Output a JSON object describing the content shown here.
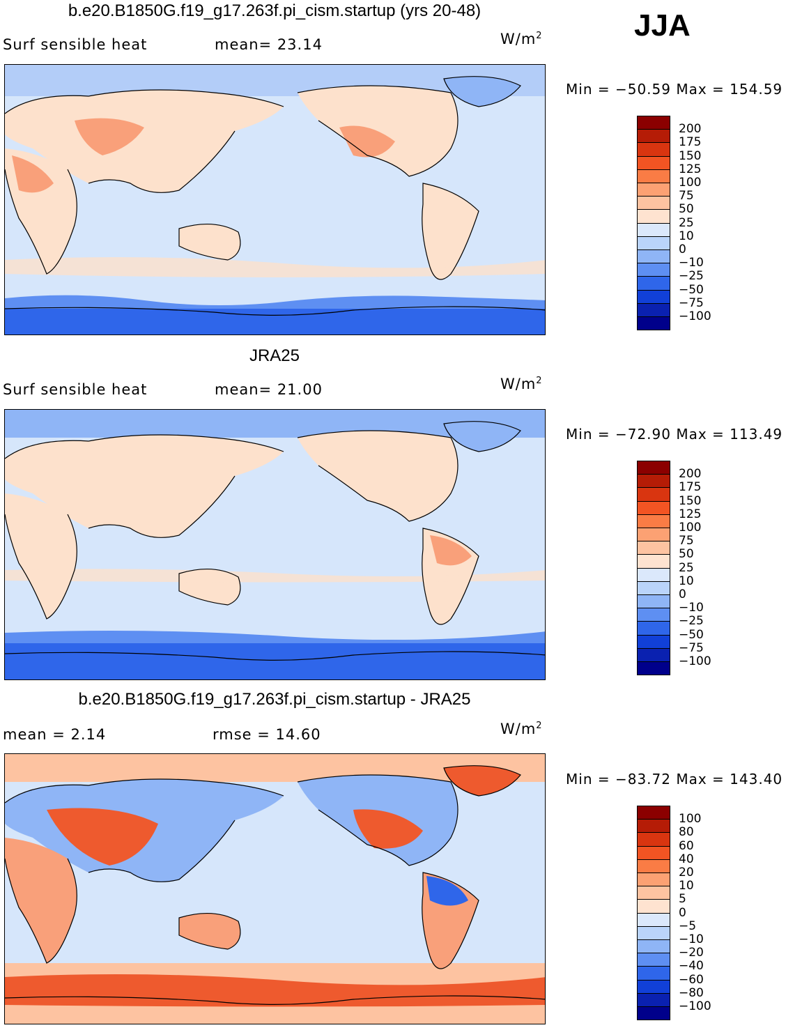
{
  "season": "JJA",
  "panels": [
    {
      "title": "b.e20.B1850G.f19_g17.263f.pi_cism.startup (yrs 20-48)",
      "left_label": "Surf  sensible  heat",
      "mid_label": "mean=   23.14",
      "unit": "W/m",
      "unit_sup": "2",
      "min_label": "Min  =  −50.59",
      "max_label": "Max  =  154.59",
      "levels": [
        "200",
        "175",
        "150",
        "125",
        "100",
        "75",
        "50",
        "25",
        "10",
        "0",
        "−10",
        "−25",
        "−50",
        "−75",
        "−100"
      ],
      "colors": [
        "#8b0000",
        "#b51c06",
        "#d93510",
        "#f25423",
        "#fa7c45",
        "#fca173",
        "#fdc3a1",
        "#fee3d0",
        "#dbe8fb",
        "#bad4fa",
        "#8fb5f6",
        "#5e8ff2",
        "#2f66ea",
        "#1140d8",
        "#0a21b0",
        "#00008b"
      ]
    },
    {
      "title": "JRA25",
      "left_label": "Surf  sensible  heat",
      "mid_label": "mean=   21.00",
      "unit": "W/m",
      "unit_sup": "2",
      "min_label": "Min  =  −72.90",
      "max_label": "Max  =  113.49",
      "levels": [
        "200",
        "175",
        "150",
        "125",
        "100",
        "75",
        "50",
        "25",
        "10",
        "0",
        "−10",
        "−25",
        "−50",
        "−75",
        "−100"
      ],
      "colors": [
        "#8b0000",
        "#b51c06",
        "#d93510",
        "#f25423",
        "#fa7c45",
        "#fca173",
        "#fdc3a1",
        "#fee3d0",
        "#dbe8fb",
        "#bad4fa",
        "#8fb5f6",
        "#5e8ff2",
        "#2f66ea",
        "#1140d8",
        "#0a21b0",
        "#00008b"
      ]
    },
    {
      "title": "b.e20.B1850G.f19_g17.263f.pi_cism.startup - JRA25",
      "left_label": "mean  =     2.14",
      "mid_label": "rmse  =    14.60",
      "unit": "W/m",
      "unit_sup": "2",
      "min_label": "Min  =  −83.72",
      "max_label": "Max  =  143.40",
      "levels": [
        "100",
        "80",
        "60",
        "40",
        "20",
        "10",
        "5",
        "0",
        "−5",
        "−10",
        "−20",
        "−40",
        "−60",
        "−80",
        "−100"
      ],
      "colors": [
        "#8b0000",
        "#b51c06",
        "#d93510",
        "#f25423",
        "#fa7c45",
        "#fca173",
        "#fdc3a1",
        "#fee3d0",
        "#dbe8fb",
        "#bad4fa",
        "#8fb5f6",
        "#5e8ff2",
        "#2f66ea",
        "#1140d8",
        "#0a21b0",
        "#00008b"
      ]
    }
  ],
  "map_colors": {
    "ocean_light": "#d6e6fb",
    "ocean_blue": "#b3cdf8",
    "land_warm": "#fde1cc",
    "land_orange": "#f9a07a",
    "land_red": "#ee5a2e",
    "cold_blue": "#5e8ff2",
    "deep_blue": "#2f66ea",
    "coast": "#000000"
  }
}
